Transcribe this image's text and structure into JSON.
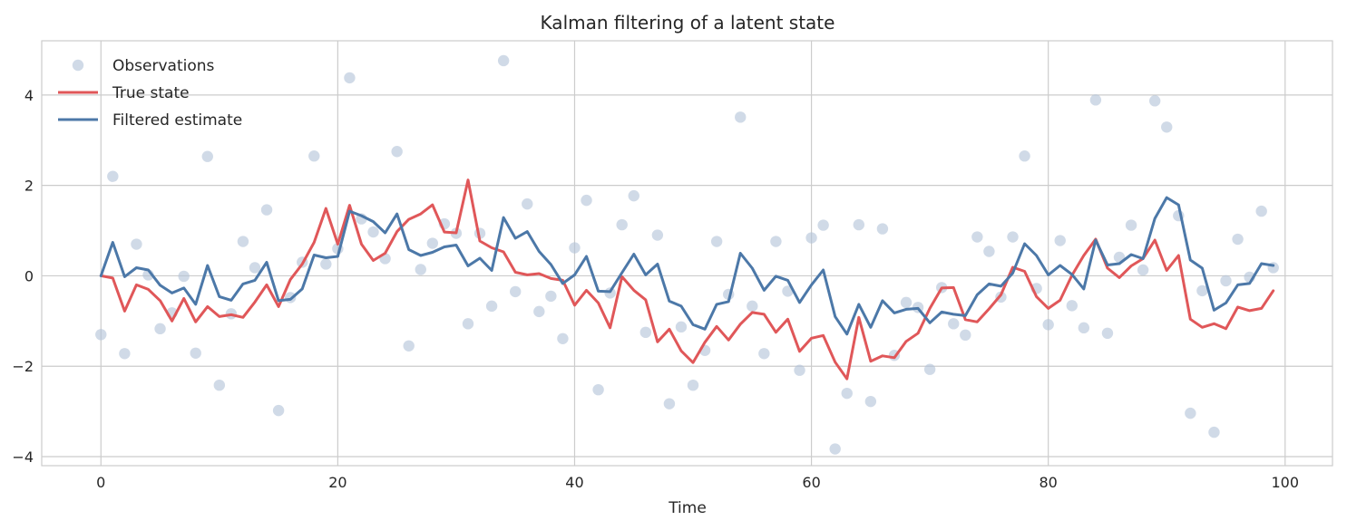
{
  "chart_data": {
    "type": "line",
    "title": "Kalman filtering of a latent state",
    "xlabel": "Time",
    "ylabel": "",
    "xlim": [
      -5,
      104
    ],
    "ylim": [
      -4.2,
      5.2
    ],
    "xticks": [
      0,
      20,
      40,
      60,
      80,
      100
    ],
    "yticks": [
      -4,
      -2,
      0,
      2,
      4
    ],
    "grid": true,
    "legend_position": "top-left",
    "series": [
      {
        "name": "Observations",
        "kind": "scatter",
        "color": "#b0c1d7",
        "x": [
          0,
          1,
          2,
          3,
          4,
          5,
          6,
          7,
          8,
          9,
          10,
          11,
          12,
          13,
          14,
          15,
          16,
          17,
          18,
          19,
          20,
          21,
          22,
          23,
          24,
          25,
          26,
          27,
          28,
          29,
          30,
          31,
          32,
          33,
          34,
          35,
          36,
          37,
          38,
          39,
          40,
          41,
          42,
          43,
          44,
          45,
          46,
          47,
          48,
          49,
          50,
          51,
          52,
          53,
          54,
          55,
          56,
          57,
          58,
          59,
          60,
          61,
          62,
          63,
          64,
          65,
          66,
          67,
          68,
          69,
          70,
          71,
          72,
          73,
          74,
          75,
          76,
          77,
          78,
          79,
          80,
          81,
          82,
          83,
          84,
          85,
          86,
          87,
          88,
          89,
          90,
          91,
          92,
          93,
          94,
          95,
          96,
          97,
          98,
          99
        ],
        "y": [
          -1.3,
          2.2,
          -1.72,
          0.7,
          0.02,
          -1.17,
          -0.82,
          -0.01,
          -1.71,
          2.64,
          -2.42,
          -0.84,
          0.76,
          0.18,
          1.46,
          -2.98,
          -0.48,
          0.3,
          2.65,
          0.26,
          0.6,
          4.38,
          1.26,
          0.97,
          0.38,
          2.75,
          -1.55,
          0.14,
          0.72,
          1.15,
          0.94,
          -1.06,
          0.94,
          -0.67,
          4.76,
          -0.35,
          1.59,
          -0.79,
          -0.45,
          -1.39,
          0.62,
          1.67,
          -2.52,
          -0.38,
          1.13,
          1.77,
          -1.25,
          0.9,
          -2.83,
          -1.13,
          -2.42,
          -1.65,
          0.76,
          -0.41,
          3.51,
          -0.67,
          -1.72,
          0.76,
          -0.34,
          -2.09,
          0.84,
          1.12,
          -3.83,
          -2.6,
          1.13,
          -2.78,
          1.04,
          -1.76,
          -0.59,
          -0.7,
          -2.07,
          -0.26,
          -1.06,
          -1.31,
          0.86,
          0.54,
          -0.47,
          0.86,
          2.65,
          -0.28,
          -1.08,
          0.78,
          -0.66,
          -1.15,
          3.89,
          -1.27,
          0.41,
          1.12,
          0.13,
          3.87,
          3.29,
          1.33,
          -3.04,
          -0.33,
          -3.46,
          -0.11,
          0.81,
          -0.03,
          1.43,
          0.18
        ]
      },
      {
        "name": "True state",
        "kind": "line",
        "color": "#e05759",
        "x": [
          0,
          1,
          2,
          3,
          4,
          5,
          6,
          7,
          8,
          9,
          10,
          11,
          12,
          13,
          14,
          15,
          16,
          17,
          18,
          19,
          20,
          21,
          22,
          23,
          24,
          25,
          26,
          27,
          28,
          29,
          30,
          31,
          32,
          33,
          34,
          35,
          36,
          37,
          38,
          39,
          40,
          41,
          42,
          43,
          44,
          45,
          46,
          47,
          48,
          49,
          50,
          51,
          52,
          53,
          54,
          55,
          56,
          57,
          58,
          59,
          60,
          61,
          62,
          63,
          64,
          65,
          66,
          67,
          68,
          69,
          70,
          71,
          72,
          73,
          74,
          75,
          76,
          77,
          78,
          79,
          80,
          81,
          82,
          83,
          84,
          85,
          86,
          87,
          88,
          89,
          90,
          91,
          92,
          93,
          94,
          95,
          96,
          97,
          98,
          99
        ],
        "y": [
          0.0,
          -0.05,
          -0.78,
          -0.2,
          -0.3,
          -0.55,
          -1.0,
          -0.5,
          -1.02,
          -0.68,
          -0.9,
          -0.86,
          -0.92,
          -0.58,
          -0.2,
          -0.68,
          -0.08,
          0.26,
          0.74,
          1.49,
          0.7,
          1.56,
          0.7,
          0.34,
          0.5,
          0.98,
          1.25,
          1.37,
          1.57,
          0.97,
          0.95,
          2.12,
          0.77,
          0.62,
          0.53,
          0.08,
          0.02,
          0.05,
          -0.06,
          -0.1,
          -0.65,
          -0.32,
          -0.6,
          -1.15,
          -0.02,
          -0.32,
          -0.53,
          -1.46,
          -1.18,
          -1.66,
          -1.92,
          -1.47,
          -1.12,
          -1.42,
          -1.07,
          -0.81,
          -0.85,
          -1.25,
          -0.96,
          -1.67,
          -1.38,
          -1.32,
          -1.91,
          -2.28,
          -0.92,
          -1.89,
          -1.77,
          -1.81,
          -1.45,
          -1.27,
          -0.72,
          -0.27,
          -0.26,
          -0.97,
          -1.02,
          -0.73,
          -0.42,
          0.19,
          0.1,
          -0.46,
          -0.72,
          -0.54,
          0.01,
          0.45,
          0.81,
          0.17,
          -0.04,
          0.22,
          0.38,
          0.79,
          0.12,
          0.45,
          -0.96,
          -1.14,
          -1.06,
          -1.17,
          -0.69,
          -0.77,
          -0.72,
          -0.33
        ]
      },
      {
        "name": "Filtered estimate",
        "kind": "line",
        "color": "#4c78a8",
        "x": [
          0,
          1,
          2,
          3,
          4,
          5,
          6,
          7,
          8,
          9,
          10,
          11,
          12,
          13,
          14,
          15,
          16,
          17,
          18,
          19,
          20,
          21,
          22,
          23,
          24,
          25,
          26,
          27,
          28,
          29,
          30,
          31,
          32,
          33,
          34,
          35,
          36,
          37,
          38,
          39,
          40,
          41,
          42,
          43,
          44,
          45,
          46,
          47,
          48,
          49,
          50,
          51,
          52,
          53,
          54,
          55,
          56,
          57,
          58,
          59,
          60,
          61,
          62,
          63,
          64,
          65,
          66,
          67,
          68,
          69,
          70,
          71,
          72,
          73,
          74,
          75,
          76,
          77,
          78,
          79,
          80,
          81,
          82,
          83,
          84,
          85,
          86,
          87,
          88,
          89,
          90,
          91,
          92,
          93,
          94,
          95,
          96,
          97,
          98,
          99
        ],
        "y": [
          0.0,
          0.74,
          -0.02,
          0.18,
          0.13,
          -0.21,
          -0.38,
          -0.27,
          -0.63,
          0.23,
          -0.46,
          -0.54,
          -0.18,
          -0.1,
          0.3,
          -0.55,
          -0.52,
          -0.29,
          0.46,
          0.4,
          0.43,
          1.43,
          1.33,
          1.2,
          0.95,
          1.37,
          0.58,
          0.45,
          0.52,
          0.64,
          0.68,
          0.22,
          0.39,
          0.12,
          1.29,
          0.83,
          0.98,
          0.54,
          0.25,
          -0.17,
          0.02,
          0.43,
          -0.34,
          -0.35,
          0.07,
          0.48,
          0.02,
          0.26,
          -0.56,
          -0.67,
          -1.08,
          -1.18,
          -0.63,
          -0.57,
          0.5,
          0.17,
          -0.32,
          -0.01,
          -0.1,
          -0.59,
          -0.2,
          0.13,
          -0.9,
          -1.29,
          -0.63,
          -1.14,
          -0.55,
          -0.82,
          -0.74,
          -0.72,
          -1.04,
          -0.8,
          -0.85,
          -0.88,
          -0.42,
          -0.18,
          -0.23,
          0.06,
          0.71,
          0.45,
          0.02,
          0.23,
          0.03,
          -0.29,
          0.79,
          0.24,
          0.27,
          0.47,
          0.38,
          1.27,
          1.73,
          1.57,
          0.35,
          0.17,
          -0.76,
          -0.6,
          -0.2,
          -0.17,
          0.27,
          0.23
        ]
      }
    ]
  }
}
